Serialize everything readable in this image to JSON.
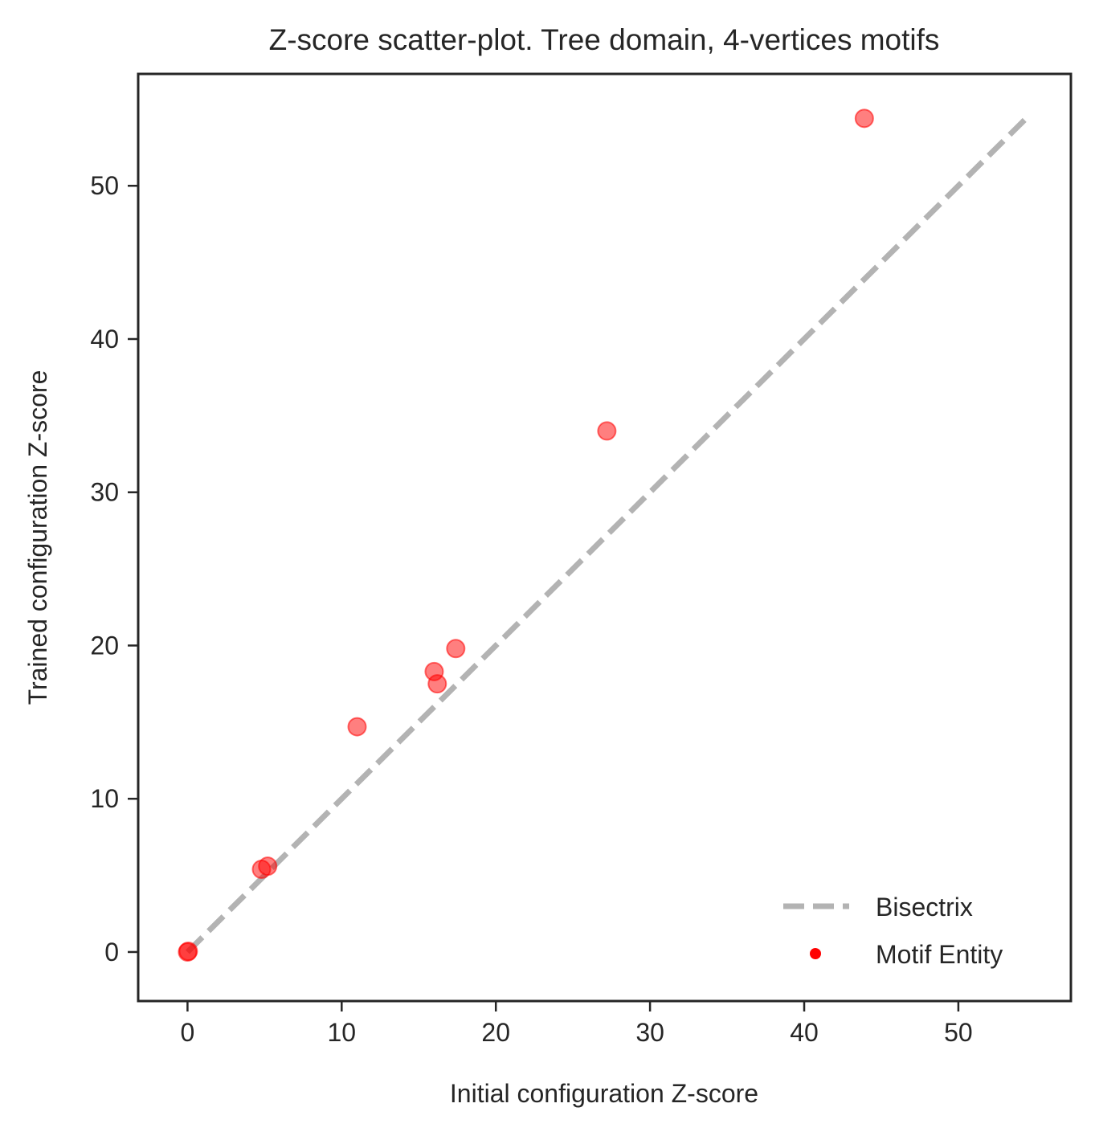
{
  "chart_data": {
    "type": "scatter",
    "title": "Z-score scatter-plot. Tree domain, 4-vertices motifs",
    "xlabel": "Initial configuration Z-score",
    "ylabel": "Trained configuration Z-score",
    "xlim": [
      -3.2,
      57.3
    ],
    "ylim": [
      -3.2,
      57.3
    ],
    "xticks": [
      0,
      10,
      20,
      30,
      40,
      50
    ],
    "yticks": [
      0,
      10,
      20,
      30,
      40,
      50
    ],
    "grid": false,
    "legend_position": "bottom-right",
    "series": [
      {
        "name": "Bisectrix",
        "kind": "line",
        "style": "dashed",
        "color": "#b3b3b3",
        "x": [
          0,
          54.4
        ],
        "y": [
          0,
          54.4
        ]
      },
      {
        "name": "Motif Entity",
        "kind": "scatter",
        "color": "#ff0000",
        "points": [
          {
            "x": 0.0,
            "y": 0.0
          },
          {
            "x": 0.05,
            "y": 0.05
          },
          {
            "x": 4.8,
            "y": 5.4
          },
          {
            "x": 5.2,
            "y": 5.6
          },
          {
            "x": 11.0,
            "y": 14.7
          },
          {
            "x": 16.0,
            "y": 18.3
          },
          {
            "x": 16.2,
            "y": 17.5
          },
          {
            "x": 17.4,
            "y": 19.8
          },
          {
            "x": 27.2,
            "y": 34.0
          },
          {
            "x": 43.9,
            "y": 54.4
          }
        ]
      }
    ]
  }
}
